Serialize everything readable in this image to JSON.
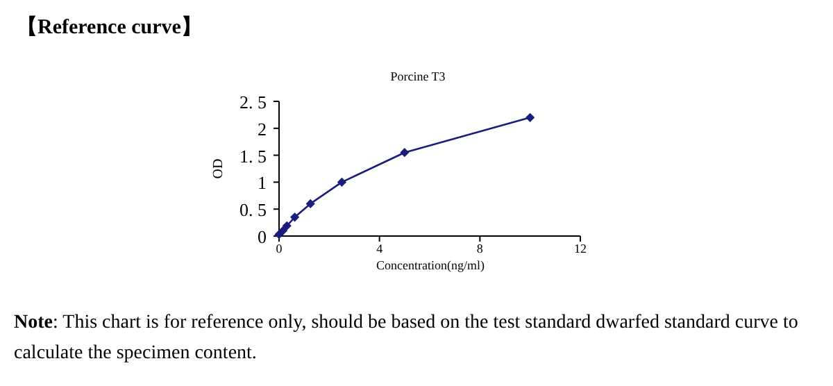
{
  "chart_data": {
    "type": "line",
    "title": "【Reference curve】",
    "subtitle": "Porcine T3",
    "xlabel": "Concentration(ng/ml)",
    "ylabel": "OD",
    "x": [
      0,
      0.156,
      0.312,
      0.625,
      1.25,
      2.5,
      5,
      10
    ],
    "series": [
      {
        "color": "#1c1c7c",
        "values": [
          0.03,
          0.1,
          0.19,
          0.35,
          0.6,
          1.0,
          1.55,
          2.2
        ]
      }
    ],
    "xlim": [
      0,
      12
    ],
    "xticks": [
      0,
      4,
      8,
      12
    ],
    "ylim": [
      0,
      2.5
    ],
    "yticks": [
      0,
      {
        "value": 0.5,
        "label": "0. 5"
      },
      1,
      {
        "value": 1.5,
        "label": "1. 5"
      },
      2,
      {
        "value": 2.5,
        "label": "2. 5"
      }
    ],
    "marker": "diamond",
    "line_style": "solid",
    "grid": false,
    "annotations": [
      "Note: This chart is for reference only, should be based on the test standard dwarfed standard curve to calculate the specimen content."
    ]
  }
}
